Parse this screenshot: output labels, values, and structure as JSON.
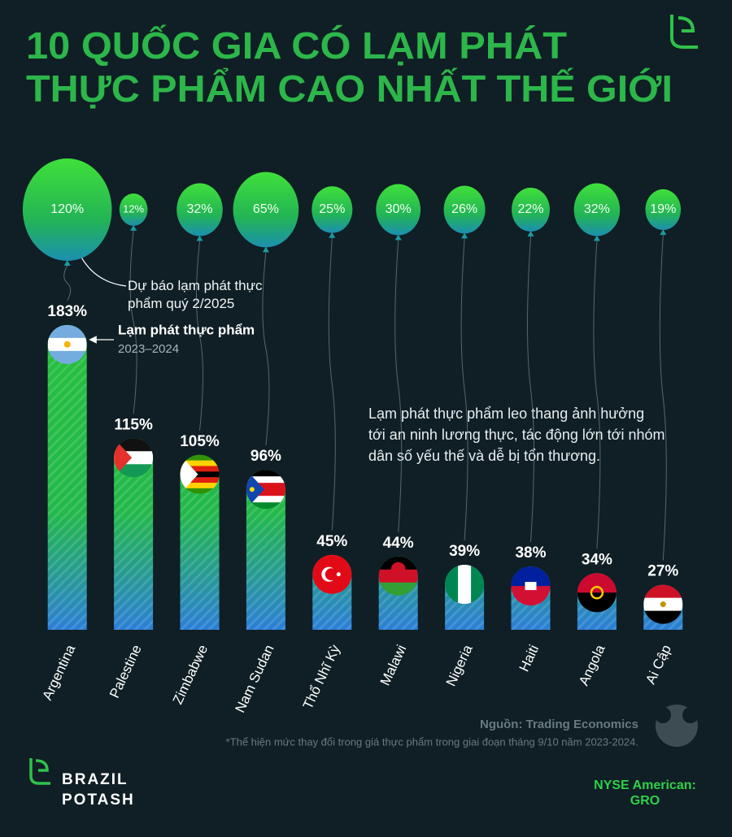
{
  "chart_data": {
    "type": "bar",
    "title": [
      "10 QUỐC GIA CÓ LẠM PHÁT",
      "THỰC PHẨM CAO NHẤT THẾ GIỚI"
    ],
    "categories": [
      "Argentina",
      "Palestine",
      "Zimbabwe",
      "Nam Sudan",
      "Thổ Nhĩ Kỳ",
      "Malawi",
      "Nigeria",
      "Haiti",
      "Angola",
      "Ai Cập"
    ],
    "series": [
      {
        "name": "Lạm phát thực phẩm",
        "period": "2023–2024",
        "color": "#27c13d",
        "values": [
          183,
          115,
          105,
          96,
          45,
          44,
          39,
          38,
          34,
          27
        ],
        "value_labels": [
          "183%",
          "115%",
          "105%",
          "96%",
          "45%",
          "44%",
          "39%",
          "38%",
          "34%",
          "27%"
        ]
      },
      {
        "name": "Dự báo lạm phát thực phẩm quý 2/2025",
        "color": "#3ddc3a",
        "values": [
          120,
          12,
          32,
          65,
          25,
          30,
          26,
          22,
          32,
          19
        ],
        "value_labels": [
          "120%",
          "12%",
          "32%",
          "65%",
          "25%",
          "30%",
          "26%",
          "22%",
          "32%",
          "19%"
        ]
      }
    ],
    "ylim": [
      0,
      200
    ],
    "note": [
      "Lạm phát thực phẩm leo thang ảnh hưởng",
      "tới an ninh lương thực, tác động lớn tới nhóm",
      "dân số yếu thế và dễ bị tổn thương."
    ],
    "source": "Nguồn: Trading Economics",
    "footnote": "*Thể hiện mức thay đổi trong giá thực phẩm trong giai đoạn tháng 9/10 năm 2023-2024.",
    "brand": [
      "BRAZIL",
      "POTASH"
    ],
    "ticker": [
      "NYSE American:",
      "GRO"
    ]
  }
}
